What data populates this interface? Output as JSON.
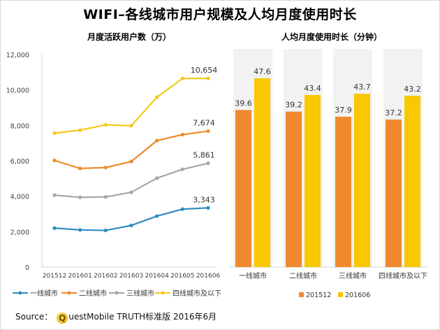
{
  "title": "WIFI–各线城市用户规模及人均月度使用时长",
  "source": {
    "label": "Source：",
    "logo_letter": "Q",
    "text": "uestMobile TRUTH标准版 2016年6月"
  },
  "chart_data": [
    {
      "type": "line",
      "title": "月度活跃用户数（万）",
      "categories": [
        "201512",
        "201601",
        "201602",
        "201603",
        "201604",
        "201605",
        "201606"
      ],
      "ylim": [
        0,
        12000
      ],
      "yticks": [
        "0",
        "2,000",
        "4,000",
        "6,000",
        "8,000",
        "10,000",
        "12,000"
      ],
      "ytick_values": [
        0,
        2000,
        4000,
        6000,
        8000,
        10000,
        12000
      ],
      "grid": false,
      "legend_position": "bottom",
      "series": [
        {
          "name": "一线城市",
          "color": "#2e8bc0",
          "values": [
            2200,
            2100,
            2070,
            2350,
            2880,
            3270,
            3343
          ],
          "end_label": "3,343"
        },
        {
          "name": "二线城市",
          "color": "#ef8b2c",
          "values": [
            6020,
            5570,
            5620,
            5960,
            7140,
            7480,
            7674
          ],
          "end_label": "7,674"
        },
        {
          "name": "三线城市",
          "color": "#a6a6a6",
          "values": [
            4060,
            3940,
            3960,
            4220,
            5020,
            5520,
            5861
          ],
          "end_label": "5,861"
        },
        {
          "name": "四线城市及以下",
          "color": "#f6c81a",
          "values": [
            7560,
            7730,
            8030,
            7980,
            9590,
            10650,
            10654
          ],
          "end_label": "10,654"
        }
      ]
    },
    {
      "type": "bar",
      "title": "人均月度使用时长（分钟）",
      "categories": [
        "一线城市",
        "二线城市",
        "三线城市",
        "四线城市及以下"
      ],
      "ylim": [
        0,
        55
      ],
      "grid": false,
      "legend_position": "bottom",
      "series": [
        {
          "name": "201512",
          "color": "#f0892e",
          "values": [
            39.6,
            39.2,
            37.9,
            37.2
          ],
          "labels": [
            "39.6",
            "39.2",
            "37.9",
            "37.2"
          ]
        },
        {
          "name": "201606",
          "color": "#f9c800",
          "values": [
            47.6,
            43.4,
            43.7,
            43.2
          ],
          "labels": [
            "47.6",
            "43.4",
            "43.7",
            "43.2"
          ]
        }
      ]
    }
  ]
}
